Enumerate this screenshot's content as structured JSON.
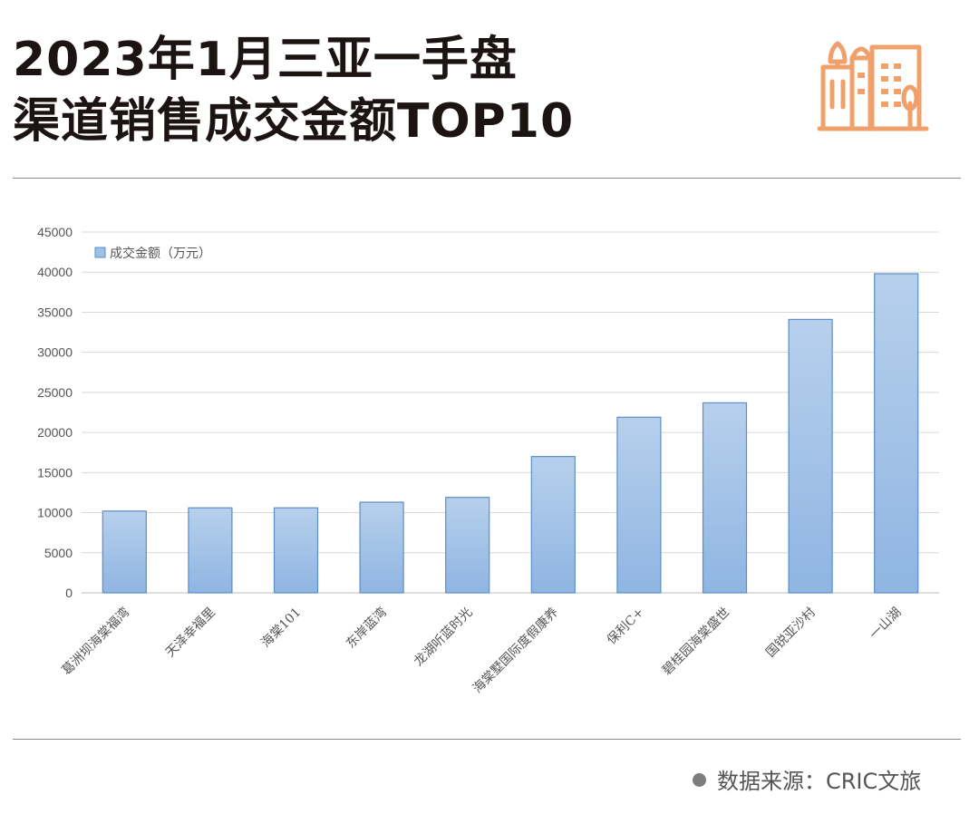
{
  "header": {
    "title_line1": "2023年1月三亚一手盘",
    "title_line2": "渠道销售成交金额TOP10",
    "icon": "city-buildings-icon",
    "accent_color": "#f0a06a"
  },
  "chart_data": {
    "type": "bar",
    "title": "",
    "xlabel": "",
    "ylabel": "",
    "ylim": [
      0,
      45000
    ],
    "yticks": [
      0,
      5000,
      10000,
      15000,
      20000,
      25000,
      30000,
      35000,
      40000,
      45000
    ],
    "grid": true,
    "legend_position": "top-left",
    "categories": [
      "葛洲坝海棠福湾",
      "天泽幸福里",
      "海棠101",
      "东岸蓝湾",
      "龙湖听蓝时光",
      "海棠墅国际度假康养",
      "保利C+",
      "碧桂园海棠盛世",
      "国锐亚沙村",
      "一山湖"
    ],
    "series": [
      {
        "name": "成交金额（万元）",
        "color": "#9dc0e6",
        "values": [
          10200,
          10600,
          10600,
          11300,
          11900,
          17000,
          21900,
          23700,
          34100,
          39800
        ]
      }
    ]
  },
  "footer": {
    "source": "数据来源：CRIC文旅"
  }
}
